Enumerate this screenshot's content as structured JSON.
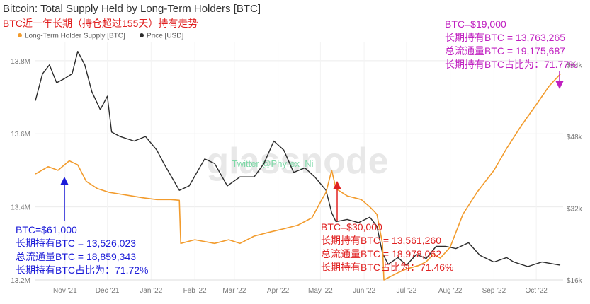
{
  "header": {
    "title": "Bitcoin: Total Supply Held by Long-Term Holders [BTC]",
    "subtitle": "BTC近一年长期（持仓超过155天）持有走势"
  },
  "watermark": {
    "logo": "glassnode",
    "credit": "Twitter @Phyrex_Ni"
  },
  "annotations": {
    "nov": [
      "BTC=$61,000",
      "长期持有BTC = 13,526,023",
      "总流通量BTC = 18,859,343",
      "长期持有BTC占比为：71.72%"
    ],
    "may": [
      "BTC=$30,000",
      "长期持有BTC = 13,561,260",
      "总流通量BTC = 18,978,062",
      "长期持有BTC占比为：71.46%"
    ],
    "oct": [
      "BTC=$19,000",
      "长期持有BTC = 13,763,265",
      "总流通量BTC = 19,175,687",
      "长期持有BTC占比为：71.77%"
    ]
  },
  "colors": {
    "supply": "#f29b2c",
    "price": "#2b2b2b",
    "blue_note": "#1a1ad8",
    "red_note": "#e02020",
    "magenta_note": "#c020c0"
  },
  "chart_data": {
    "type": "line",
    "title": "Bitcoin: Total Supply Held by Long-Term Holders [BTC]",
    "x_ticks": [
      "Nov '21",
      "Dec '21",
      "Jan '22",
      "Feb '22",
      "Mar '22",
      "Apr '22",
      "May '22",
      "Jun '22",
      "Jul '22",
      "Aug '22",
      "Sep '22",
      "Oct '22"
    ],
    "y_left": {
      "ticks": [
        "13.2M",
        "13.4M",
        "13.6M",
        "13.8M"
      ],
      "range": [
        13200000,
        13850000
      ]
    },
    "y_right": {
      "ticks": [
        "$16k",
        "$32k",
        "$48k",
        "$64k"
      ],
      "range": [
        16000,
        69000
      ]
    },
    "legend": [
      "Long-Term Holder Supply [BTC]",
      "Price [USD]"
    ],
    "legend_position": "top-left",
    "grid": true,
    "series": [
      {
        "name": "Long-Term Holder Supply [BTC]",
        "axis": "left",
        "x": [
          "2021-10-11",
          "2021-10-20",
          "2021-10-27",
          "2021-11-04",
          "2021-11-10",
          "2021-11-16",
          "2021-11-24",
          "2021-12-02",
          "2021-12-10",
          "2021-12-18",
          "2021-12-26",
          "2022-01-05",
          "2022-01-15",
          "2022-01-21",
          "2022-01-22",
          "2022-02-01",
          "2022-02-15",
          "2022-02-25",
          "2022-03-05",
          "2022-03-15",
          "2022-03-25",
          "2022-04-05",
          "2022-04-15",
          "2022-04-25",
          "2022-05-02",
          "2022-05-05",
          "2022-05-09",
          "2022-05-12",
          "2022-05-20",
          "2022-05-30",
          "2022-06-05",
          "2022-06-10",
          "2022-06-14",
          "2022-06-15",
          "2022-06-20",
          "2022-06-25",
          "2022-07-01",
          "2022-07-10",
          "2022-07-15",
          "2022-07-20",
          "2022-07-25",
          "2022-08-01",
          "2022-08-10",
          "2022-08-20",
          "2022-09-01",
          "2022-09-10",
          "2022-09-20",
          "2022-10-01",
          "2022-10-10",
          "2022-10-18"
        ],
        "y": [
          13490000,
          13510000,
          13500000,
          13526000,
          13515000,
          13470000,
          13450000,
          13440000,
          13435000,
          13430000,
          13425000,
          13420000,
          13420000,
          13418000,
          13300000,
          13310000,
          13300000,
          13310000,
          13300000,
          13320000,
          13330000,
          13340000,
          13350000,
          13370000,
          13420000,
          13440000,
          13500000,
          13450000,
          13430000,
          13420000,
          13400000,
          13380000,
          13300000,
          13200000,
          13210000,
          13220000,
          13230000,
          13240000,
          13250000,
          13270000,
          13260000,
          13290000,
          13380000,
          13440000,
          13500000,
          13560000,
          13620000,
          13680000,
          13730000,
          13763265
        ]
      },
      {
        "name": "Price [USD]",
        "axis": "right",
        "x": [
          "2021-10-11",
          "2021-10-16",
          "2021-10-21",
          "2021-10-26",
          "2021-11-01",
          "2021-11-06",
          "2021-11-10",
          "2021-11-15",
          "2021-11-20",
          "2021-11-26",
          "2021-12-01",
          "2021-12-04",
          "2021-12-10",
          "2021-12-20",
          "2021-12-28",
          "2022-01-05",
          "2022-01-10",
          "2022-01-21",
          "2022-01-28",
          "2022-02-08",
          "2022-02-15",
          "2022-02-24",
          "2022-03-05",
          "2022-03-15",
          "2022-03-22",
          "2022-03-29",
          "2022-04-05",
          "2022-04-12",
          "2022-04-20",
          "2022-04-27",
          "2022-05-05",
          "2022-05-09",
          "2022-05-12",
          "2022-05-20",
          "2022-05-28",
          "2022-06-05",
          "2022-06-10",
          "2022-06-14",
          "2022-06-18",
          "2022-06-25",
          "2022-07-01",
          "2022-07-08",
          "2022-07-15",
          "2022-07-22",
          "2022-07-29",
          "2022-08-05",
          "2022-08-14",
          "2022-08-22",
          "2022-09-01",
          "2022-09-10",
          "2022-09-15",
          "2022-09-25",
          "2022-10-05",
          "2022-10-18"
        ],
        "y": [
          56000,
          62000,
          64000,
          60000,
          61000,
          62000,
          67000,
          64000,
          58000,
          54000,
          57000,
          49000,
          48000,
          47000,
          48000,
          45000,
          42000,
          36000,
          37000,
          43000,
          42000,
          37000,
          39000,
          39000,
          42000,
          47000,
          45000,
          40000,
          41000,
          39000,
          36000,
          31000,
          29000,
          29500,
          28800,
          30000,
          28000,
          22000,
          19500,
          21000,
          19300,
          21700,
          20800,
          23500,
          23500,
          23000,
          24300,
          21500,
          20000,
          21000,
          20000,
          19000,
          20000,
          19300
        ]
      }
    ]
  }
}
